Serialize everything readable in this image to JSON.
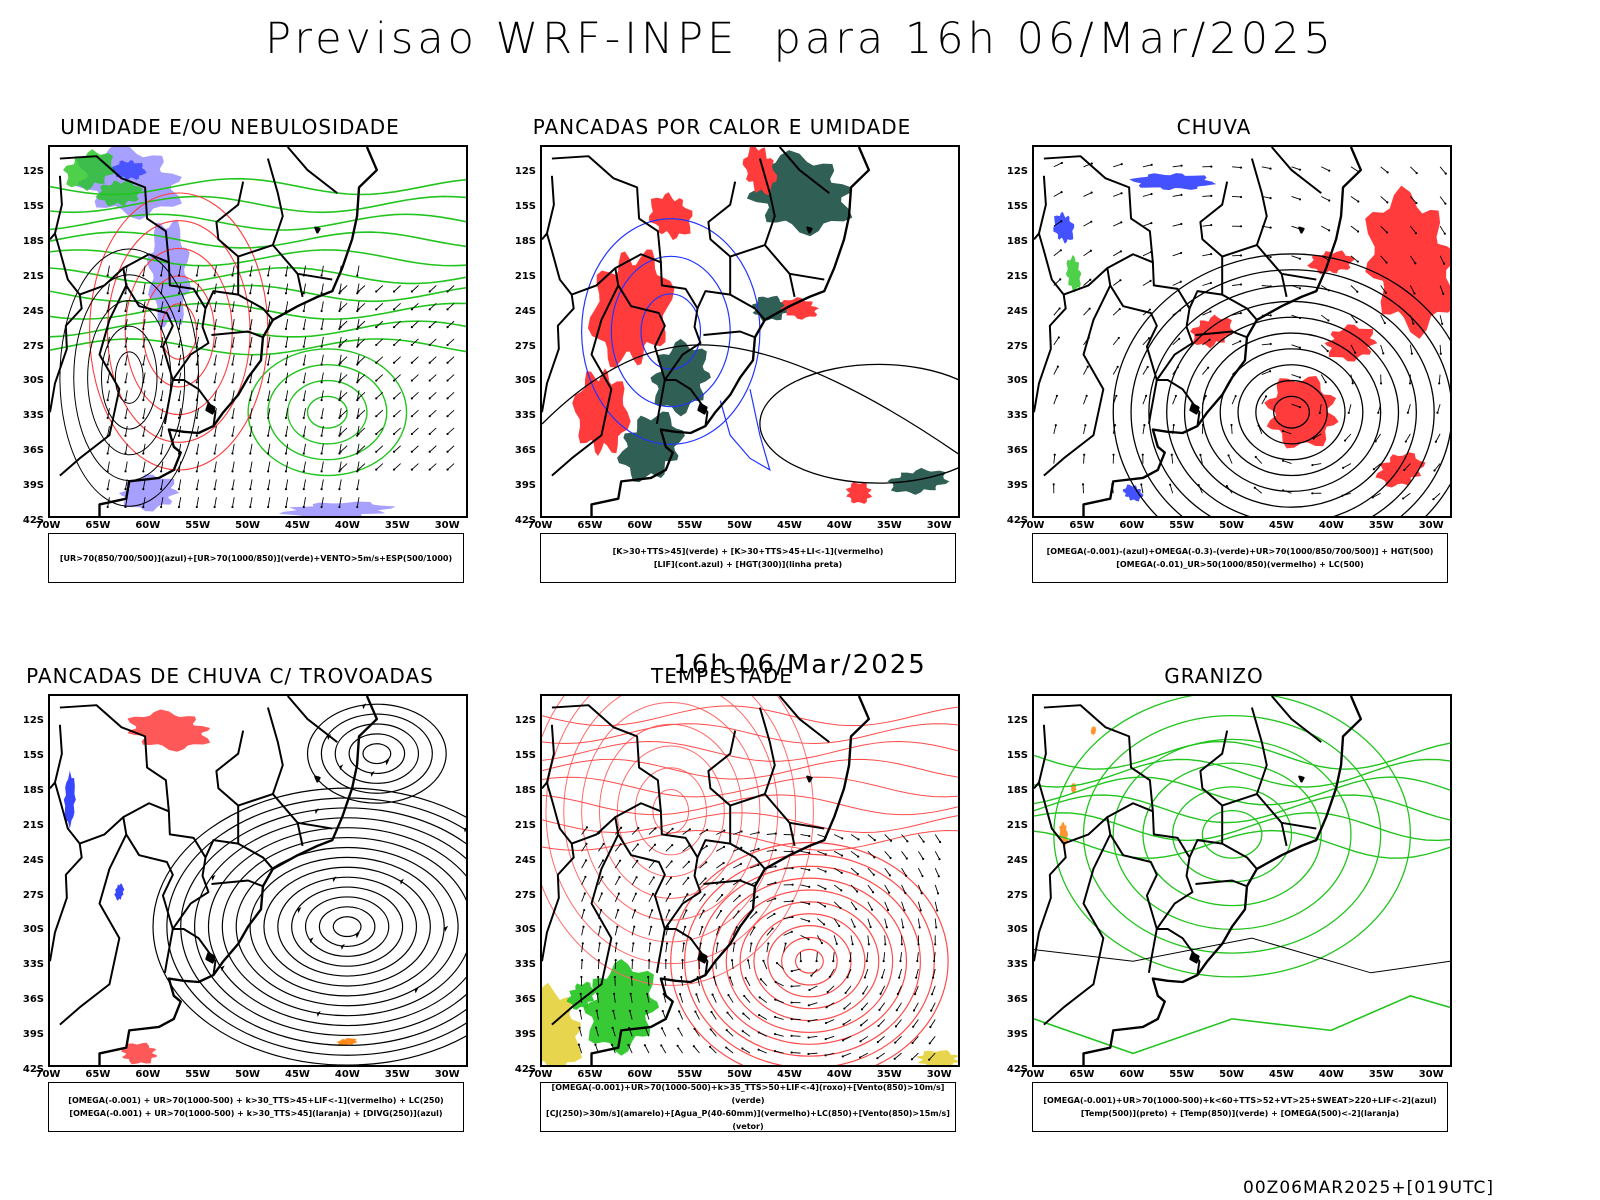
{
  "title": "Previsao WRF-INPE  para 16h 06/Mar/2025",
  "mid_date": "16h 06/Mar/2025",
  "footer": "00Z06MAR2025+[019UTC]",
  "lat_labels": [
    "12S",
    "15S",
    "18S",
    "21S",
    "24S",
    "27S",
    "30S",
    "33S",
    "36S",
    "39S",
    "42S"
  ],
  "lon_labels": [
    "70W",
    "65W",
    "60W",
    "55W",
    "50W",
    "45W",
    "40W",
    "35W",
    "30W"
  ],
  "colors": {
    "red": "#ff3b3b",
    "green": "#22c41e",
    "blue": "#2233ff",
    "lavender": "#a8a0ff",
    "teal": "#2f5f55",
    "yellow": "#e4d23a",
    "orange": "#ff8a1a"
  },
  "panels": [
    {
      "title": "UMIDADE E/OU NEBULOSIDADE",
      "legend": [
        "[UR>70(850/700/500)](azul)+[UR>70(1000/850)](verde)+VENTO>5m/s+ESP(500/1000)"
      ]
    },
    {
      "title": "PANCADAS POR CALOR E UMIDADE",
      "legend": [
        "[K>30+TTS>45](verde) + [K>30+TTS>45+LI<-1](vermelho)",
        "[LIF](cont.azul) + [HGT(300)](linha preta)"
      ]
    },
    {
      "title": "CHUVA",
      "legend": [
        "[OMEGA(-0.001)-(azul)+OMEGA(-0.3)-(verde)+UR>70(1000/850/700/500)] + HGT(500)",
        "[OMEGA(-0.01)_UR>50(1000/850)(vermelho) + LC(500)"
      ]
    },
    {
      "title": "PANCADAS DE CHUVA C/ TROVOADAS",
      "legend": [
        "[OMEGA(-0.001) + UR>70(1000-500) + k>30_TTS>45+LIF<-1](vermelho) + LC(250)",
        "[OMEGA(-0.001) + UR>70(1000-500) + k>30_TTS>45](laranja) + [DIVG(250)](azul)"
      ]
    },
    {
      "title": "TEMPESTADE",
      "legend": [
        "[OMEGA(-0.001)+UR>70(1000-500)+k>35_TTS>50+LIF<-4](roxo)+[Vento(850)>10m/s](verde)",
        "[CJ(250)>30m/s](amarelo)+[Agua_P(40-60mm)](vermelho)+LC(850)+[Vento(850)>15m/s](vetor)"
      ]
    },
    {
      "title": "GRANIZO",
      "legend": [
        "[OMEGA(-0.001)+UR>70(1000-500)+k<60+TTS>52+VT>25+SWEAT>220+LIF<-2](azul)",
        "[Temp(500)](preto) + [Temp(850)](verde) + [OMEGA(500)<-2](laranja)"
      ]
    }
  ]
}
